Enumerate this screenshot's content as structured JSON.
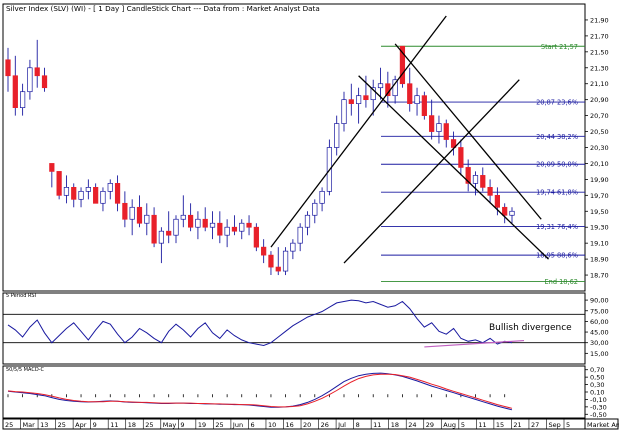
{
  "title": "Silver Index (SLV) (WI) - [ 1 Day ] CandleStick Chart --- Data from : Market Analyst Data",
  "colors": {
    "up": "#ffffff",
    "down": "#e8202a",
    "wick": "#1a1aa0",
    "border": "#000000",
    "fib": "#1a1aa0",
    "start_end": "#2e8b2e",
    "channel": "#000000",
    "rsi": "#1a1aa0",
    "macd": "#1a1aa0",
    "signal": "#e8202a",
    "divergence": "#c060c0"
  },
  "chart_data": [
    {
      "type": "candlestick",
      "panel": "price",
      "title": "Silver Index (SLV) (WI) - [ 1 Day ] CandleStick Chart --- Data from : Market Analyst Data",
      "ylim": [
        18.5,
        22.1
      ],
      "yticks": [
        "21,90",
        "21,70",
        "21,50",
        "21,30",
        "21,10",
        "20,90",
        "20,70",
        "20,50",
        "20,30",
        "20,10",
        "19,90",
        "19,70",
        "19,50",
        "19,30",
        "19,10",
        "18,90",
        "18,70"
      ],
      "ytick_values": [
        21.9,
        21.7,
        21.5,
        21.3,
        21.1,
        20.9,
        20.7,
        20.5,
        20.3,
        20.1,
        19.9,
        19.7,
        19.5,
        19.3,
        19.1,
        18.9,
        18.7
      ],
      "x_labels": [
        "25",
        "Mar",
        "13",
        "25",
        "Apr",
        "9",
        "11",
        "18",
        "25",
        "May",
        "9",
        "19",
        "25",
        "Jun",
        "6",
        "10",
        "16",
        "20",
        "26",
        "Jul",
        "8",
        "11",
        "18",
        "24",
        "29",
        "Aug",
        "5",
        "11",
        "15",
        "21",
        "27",
        "Sep",
        "5"
      ],
      "ohlc": [
        [
          21.4,
          21.55,
          21.0,
          21.2
        ],
        [
          21.2,
          21.45,
          20.7,
          20.8
        ],
        [
          20.8,
          21.1,
          20.7,
          21.0
        ],
        [
          21.0,
          21.4,
          20.9,
          21.3
        ],
        [
          21.3,
          21.65,
          21.05,
          21.2
        ],
        [
          21.2,
          21.3,
          21.0,
          21.05
        ],
        [
          20.1,
          20.1,
          19.8,
          20.0
        ],
        [
          20.0,
          20.0,
          19.65,
          19.7
        ],
        [
          19.7,
          19.95,
          19.6,
          19.8
        ],
        [
          19.8,
          19.85,
          19.55,
          19.65
        ],
        [
          19.65,
          19.8,
          19.55,
          19.75
        ],
        [
          19.75,
          19.9,
          19.65,
          19.8
        ],
        [
          19.8,
          19.85,
          19.6,
          19.6
        ],
        [
          19.6,
          19.8,
          19.5,
          19.75
        ],
        [
          19.75,
          19.9,
          19.65,
          19.85
        ],
        [
          19.85,
          19.95,
          19.5,
          19.6
        ],
        [
          19.6,
          19.75,
          19.3,
          19.4
        ],
        [
          19.4,
          19.65,
          19.2,
          19.55
        ],
        [
          19.55,
          19.7,
          19.3,
          19.35
        ],
        [
          19.35,
          19.6,
          19.2,
          19.45
        ],
        [
          19.45,
          19.55,
          19.05,
          19.1
        ],
        [
          19.1,
          19.3,
          18.85,
          19.25
        ],
        [
          19.25,
          19.5,
          19.1,
          19.2
        ],
        [
          19.2,
          19.45,
          19.1,
          19.4
        ],
        [
          19.4,
          19.7,
          19.3,
          19.45
        ],
        [
          19.45,
          19.6,
          19.25,
          19.3
        ],
        [
          19.3,
          19.5,
          19.15,
          19.4
        ],
        [
          19.4,
          19.55,
          19.25,
          19.3
        ],
        [
          19.3,
          19.5,
          19.15,
          19.35
        ],
        [
          19.35,
          19.5,
          19.1,
          19.2
        ],
        [
          19.2,
          19.4,
          19.05,
          19.3
        ],
        [
          19.3,
          19.45,
          19.2,
          19.25
        ],
        [
          19.25,
          19.4,
          19.15,
          19.35
        ],
        [
          19.35,
          19.45,
          19.2,
          19.3
        ],
        [
          19.3,
          19.35,
          19.0,
          19.05
        ],
        [
          19.05,
          19.15,
          18.85,
          18.95
        ],
        [
          18.95,
          19.0,
          18.7,
          18.8
        ],
        [
          18.8,
          19.05,
          18.7,
          18.75
        ],
        [
          18.75,
          19.05,
          18.7,
          19.0
        ],
        [
          19.0,
          19.15,
          18.9,
          19.1
        ],
        [
          19.1,
          19.35,
          19.0,
          19.3
        ],
        [
          19.3,
          19.5,
          19.2,
          19.45
        ],
        [
          19.45,
          19.65,
          19.35,
          19.6
        ],
        [
          19.6,
          19.8,
          19.5,
          19.75
        ],
        [
          19.75,
          20.4,
          19.7,
          20.3
        ],
        [
          20.3,
          20.7,
          20.2,
          20.6
        ],
        [
          20.6,
          21.0,
          20.5,
          20.9
        ],
        [
          20.9,
          21.1,
          20.7,
          20.85
        ],
        [
          20.85,
          21.05,
          20.6,
          20.95
        ],
        [
          20.95,
          21.2,
          20.8,
          20.9
        ],
        [
          20.9,
          21.15,
          20.7,
          21.05
        ],
        [
          21.05,
          21.3,
          20.9,
          21.1
        ],
        [
          21.1,
          21.25,
          20.8,
          20.95
        ],
        [
          20.95,
          21.2,
          20.85,
          21.15
        ],
        [
          21.57,
          21.57,
          21.05,
          21.1
        ],
        [
          21.1,
          21.3,
          20.75,
          20.85
        ],
        [
          20.85,
          21.05,
          20.7,
          20.95
        ],
        [
          20.95,
          21.0,
          20.65,
          20.7
        ],
        [
          20.7,
          20.9,
          20.4,
          20.5
        ],
        [
          20.5,
          20.7,
          20.35,
          20.6
        ],
        [
          20.6,
          20.65,
          20.3,
          20.4
        ],
        [
          20.4,
          20.5,
          20.2,
          20.3
        ],
        [
          20.3,
          20.4,
          19.95,
          20.05
        ],
        [
          20.05,
          20.15,
          19.75,
          19.85
        ],
        [
          19.85,
          20.0,
          19.7,
          19.95
        ],
        [
          19.95,
          20.05,
          19.75,
          19.8
        ],
        [
          19.8,
          19.9,
          19.6,
          19.7
        ],
        [
          19.7,
          19.8,
          19.45,
          19.55
        ],
        [
          19.55,
          19.6,
          19.35,
          19.45
        ],
        [
          19.45,
          19.55,
          19.35,
          19.5
        ]
      ],
      "channels": [
        {
          "name": "rising-channel-upper",
          "from": [
            36,
            19.05
          ],
          "to": [
            60,
            21.95
          ]
        },
        {
          "name": "rising-channel-lower",
          "from": [
            46,
            18.85
          ],
          "to": [
            70,
            21.15
          ]
        },
        {
          "name": "falling-channel-upper",
          "from": [
            53,
            21.6
          ],
          "to": [
            73,
            19.4
          ]
        },
        {
          "name": "falling-channel-lower",
          "from": [
            48,
            21.2
          ],
          "to": [
            74,
            18.9
          ]
        }
      ],
      "fib_levels": [
        {
          "label": "Start 21,57",
          "value": 21.57,
          "kind": "start"
        },
        {
          "label": "20,87 23,6%",
          "value": 20.87,
          "kind": "fib"
        },
        {
          "label": "20,44 38,2%",
          "value": 20.44,
          "kind": "fib"
        },
        {
          "label": "20,09 50,0%",
          "value": 20.09,
          "kind": "fib"
        },
        {
          "label": "19,74 61,8%",
          "value": 19.74,
          "kind": "fib"
        },
        {
          "label": "19,31 76,4%",
          "value": 19.31,
          "kind": "fib"
        },
        {
          "label": "18,95 88,6%",
          "value": 18.95,
          "kind": "fib"
        },
        {
          "label": "End 18,62",
          "value": 18.62,
          "kind": "end"
        }
      ]
    },
    {
      "type": "line",
      "panel": "rsi",
      "title": "5 Period RSI",
      "ylim": [
        0,
        100
      ],
      "yticks": [
        "90,00",
        "75,00",
        "60,00",
        "45,00",
        "30,00",
        "15,00"
      ],
      "ytick_values": [
        90,
        75,
        60,
        45,
        30,
        15
      ],
      "hlines": [
        70,
        30
      ],
      "annotation": "Bullish divergence",
      "values": [
        55,
        48,
        38,
        52,
        62,
        44,
        30,
        40,
        50,
        58,
        46,
        34,
        48,
        60,
        56,
        42,
        30,
        38,
        50,
        44,
        36,
        30,
        46,
        56,
        48,
        38,
        50,
        58,
        44,
        36,
        48,
        40,
        34,
        30,
        28,
        26,
        30,
        38,
        46,
        54,
        60,
        66,
        70,
        74,
        80,
        86,
        88,
        90,
        89,
        86,
        88,
        84,
        80,
        82,
        88,
        78,
        64,
        52,
        58,
        46,
        42,
        50,
        36,
        32,
        34,
        30,
        36,
        28,
        32,
        30
      ]
    },
    {
      "type": "line",
      "panel": "macd",
      "title": "50/5/5 MACD-C",
      "ylim": [
        -0.6,
        0.8
      ],
      "yticks": [
        "0,70",
        "0,50",
        "0,30",
        "0,10",
        "-0,10",
        "-0,30",
        "-0,50"
      ],
      "ytick_values": [
        0.7,
        0.5,
        0.3,
        0.1,
        -0.1,
        -0.3,
        -0.5
      ],
      "series": [
        {
          "name": "MACD",
          "values": [
            0.12,
            0.1,
            0.08,
            0.06,
            0.03,
            0.0,
            -0.05,
            -0.1,
            -0.13,
            -0.15,
            -0.16,
            -0.17,
            -0.16,
            -0.15,
            -0.14,
            -0.15,
            -0.17,
            -0.18,
            -0.18,
            -0.19,
            -0.2,
            -0.21,
            -0.21,
            -0.2,
            -0.2,
            -0.21,
            -0.21,
            -0.22,
            -0.22,
            -0.23,
            -0.23,
            -0.24,
            -0.24,
            -0.25,
            -0.27,
            -0.29,
            -0.31,
            -0.31,
            -0.3,
            -0.28,
            -0.24,
            -0.18,
            -0.1,
            0.0,
            0.12,
            0.25,
            0.38,
            0.47,
            0.54,
            0.58,
            0.6,
            0.61,
            0.59,
            0.56,
            0.52,
            0.46,
            0.4,
            0.33,
            0.26,
            0.2,
            0.14,
            0.08,
            0.02,
            -0.04,
            -0.1,
            -0.16,
            -0.22,
            -0.28,
            -0.33,
            -0.38
          ]
        },
        {
          "name": "Signal",
          "values": [
            0.13,
            0.11,
            0.1,
            0.08,
            0.06,
            0.03,
            -0.01,
            -0.06,
            -0.1,
            -0.13,
            -0.15,
            -0.16,
            -0.16,
            -0.16,
            -0.15,
            -0.15,
            -0.16,
            -0.17,
            -0.18,
            -0.18,
            -0.19,
            -0.2,
            -0.2,
            -0.2,
            -0.2,
            -0.2,
            -0.21,
            -0.21,
            -0.22,
            -0.22,
            -0.23,
            -0.23,
            -0.24,
            -0.24,
            -0.25,
            -0.27,
            -0.29,
            -0.3,
            -0.3,
            -0.29,
            -0.27,
            -0.22,
            -0.15,
            -0.07,
            0.03,
            0.14,
            0.26,
            0.37,
            0.46,
            0.52,
            0.56,
            0.58,
            0.58,
            0.57,
            0.54,
            0.5,
            0.44,
            0.38,
            0.31,
            0.25,
            0.18,
            0.12,
            0.06,
            0.0,
            -0.06,
            -0.12,
            -0.18,
            -0.24,
            -0.29,
            -0.34
          ]
        }
      ]
    }
  ]
}
